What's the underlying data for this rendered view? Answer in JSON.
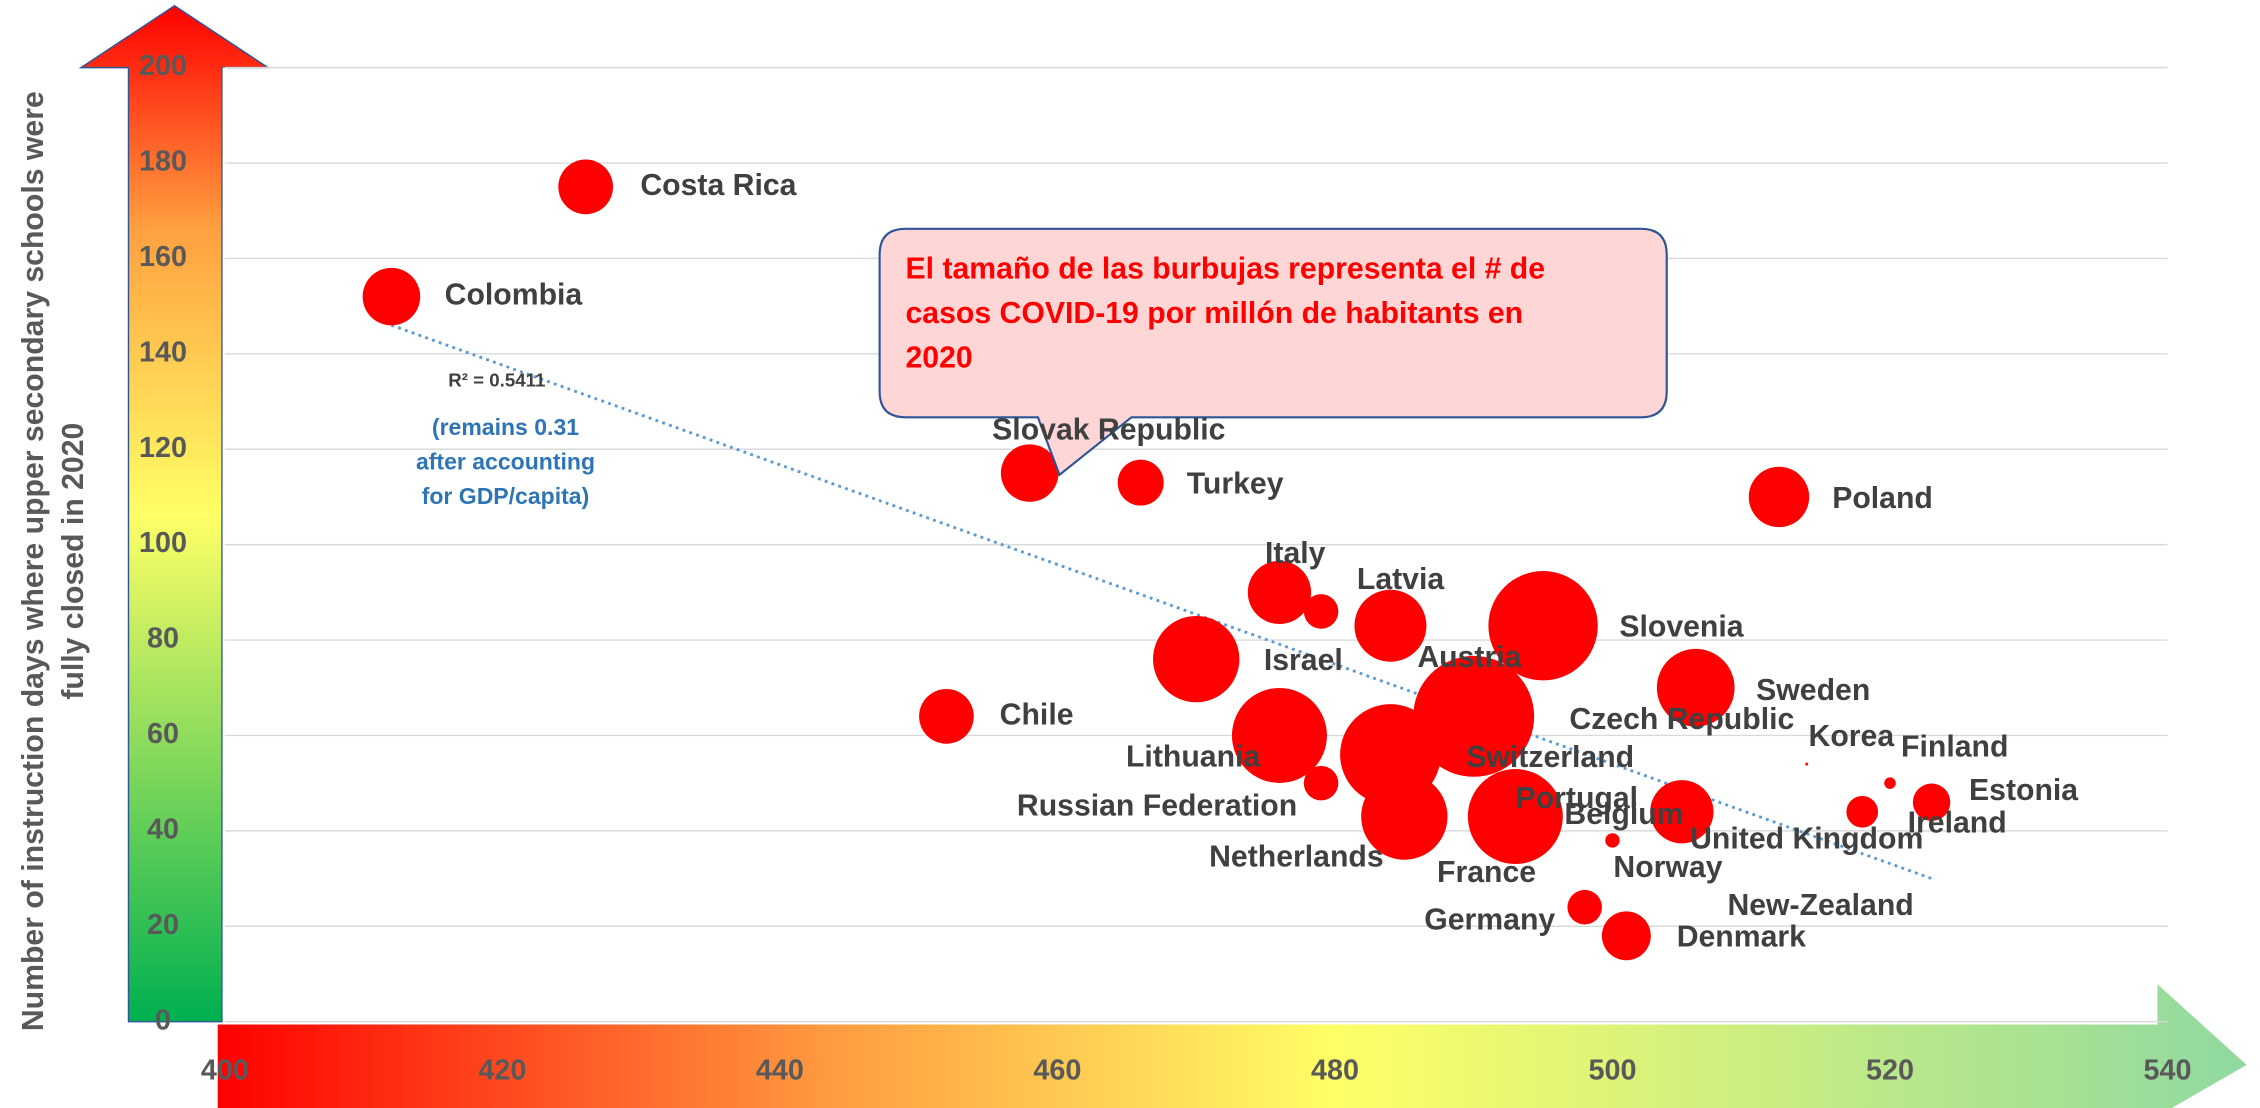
{
  "chart_data": {
    "type": "bubble",
    "y_label": [
      "Number of instruction days where upper secondary schools were",
      "fully closed in 2020"
    ],
    "xlim": [
      400,
      540
    ],
    "xticks": [
      400,
      420,
      440,
      460,
      480,
      500,
      520,
      540
    ],
    "ylim": [
      0,
      200
    ],
    "yticks": [
      0,
      20,
      40,
      60,
      80,
      100,
      120,
      140,
      160,
      180,
      200
    ],
    "grid": true,
    "color": "#ff0000",
    "points": [
      {
        "name": "Costa Rica",
        "x": 426,
        "y": 175,
        "size": 19
      },
      {
        "name": "Colombia",
        "x": 412,
        "y": 152,
        "size": 20
      },
      {
        "name": "Slovak Republic",
        "x": 458,
        "y": 115,
        "size": 20
      },
      {
        "name": "Turkey",
        "x": 466,
        "y": 113,
        "size": 16
      },
      {
        "name": "Poland",
        "x": 512,
        "y": 110,
        "size": 21
      },
      {
        "name": "Italy",
        "x": 476,
        "y": 90,
        "size": 22
      },
      {
        "name": null,
        "x": 479,
        "y": 86,
        "size": 12
      },
      {
        "name": "Latvia",
        "x": 484,
        "y": 83,
        "size": 25
      },
      {
        "name": "Slovenia",
        "x": 495,
        "y": 83,
        "size": 38
      },
      {
        "name": "Israel",
        "x": 470,
        "y": 76,
        "size": 30
      },
      {
        "name": "Austria",
        "x": 490,
        "y": 64,
        "size": 42
      },
      {
        "name": "Chile",
        "x": 452,
        "y": 64,
        "size": 19
      },
      {
        "name": "Sweden",
        "x": 506,
        "y": 70,
        "size": 27
      },
      {
        "name": "Czech Republic",
        "x": 505,
        "y": 63,
        "size": 0
      },
      {
        "name": "Lithuania",
        "x": 476,
        "y": 60,
        "size": 33
      },
      {
        "name": "Switzerland",
        "x": 484,
        "y": 56,
        "size": 35
      },
      {
        "name": "Russian Federation",
        "x": 479,
        "y": 50,
        "size": 12
      },
      {
        "name": "Netherlands",
        "x": 485,
        "y": 43,
        "size": 30
      },
      {
        "name": "France",
        "x": 493,
        "y": 43,
        "size": 33
      },
      {
        "name": "Portugal",
        "x": 505,
        "y": 44,
        "size": 22
      },
      {
        "name": "Belgium",
        "x": 500,
        "y": 38,
        "size": 5
      },
      {
        "name": "United Kingdom",
        "x": 514,
        "y": 38,
        "size": 0
      },
      {
        "name": "Korea",
        "x": 514,
        "y": 54,
        "size": 1
      },
      {
        "name": "Finland",
        "x": 520,
        "y": 50,
        "size": 4
      },
      {
        "name": "Ireland",
        "x": 518,
        "y": 44,
        "size": 11
      },
      {
        "name": "Estonia",
        "x": 523,
        "y": 46,
        "size": 13
      },
      {
        "name": "Norway",
        "x": 504,
        "y": 32,
        "size": 0
      },
      {
        "name": "Germany",
        "x": 498,
        "y": 24,
        "size": 12
      },
      {
        "name": "Denmark",
        "x": 501,
        "y": 18,
        "size": 17
      },
      {
        "name": "New-Zealand",
        "x": 515,
        "y": 24,
        "size": 0
      }
    ],
    "trendline": {
      "x": [
        412,
        523
      ],
      "y": [
        146,
        30
      ],
      "color": "#5b9bd5"
    },
    "r_squared_label": "R² = 0.5411",
    "annotation": [
      "(remains 0.31",
      "after accounting",
      "for GDP/capita)"
    ],
    "callout": [
      "El  tamaño de las burbujas representa el # de",
      "casos COVID-19 por millón de habitants en",
      "2020"
    ]
  }
}
